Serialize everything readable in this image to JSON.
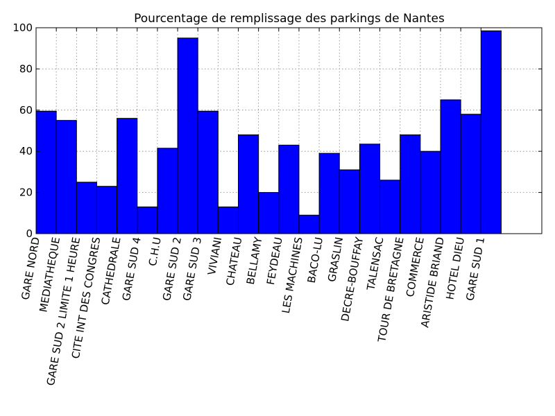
{
  "chart_data": {
    "type": "bar",
    "title": "Pourcentage de remplissage des parkings de Nantes",
    "xlabel": "",
    "ylabel": "",
    "categories": [
      "GARE NORD",
      "MEDIATHEQUE",
      "GARE SUD 2 LIMITE 1 HEURE",
      "CITE INT DES CONGRES",
      "CATHEDRALE",
      "GARE SUD 4",
      "C.H.U",
      "GARE SUD 2",
      "GARE SUD 3",
      "VIVIANI",
      "CHATEAU",
      "BELLAMY",
      "FEYDEAU",
      "LES MACHINES",
      "BACO-LU",
      "GRASLIN",
      "DECRE-BOUFFAY",
      "TALENSAC",
      "TOUR DE BRETAGNE",
      "COMMERCE",
      "ARISTIDE BRIAND",
      "HOTEL DIEU",
      "GARE SUD 1"
    ],
    "values": [
      59.5,
      55,
      25,
      23,
      56,
      13,
      41.5,
      95,
      59.5,
      13,
      48,
      20,
      43,
      9,
      39,
      31,
      43.5,
      26,
      48,
      40,
      65,
      58,
      98.5
    ],
    "ylim": [
      0,
      100
    ],
    "y_ticks": [
      "0",
      "20",
      "40",
      "60",
      "80",
      "100"
    ],
    "grid": true,
    "legend": "none",
    "colors": {
      "bar_fill": "#0000ff",
      "bar_edge": "#000000",
      "grid": "#808080",
      "frame": "#000000"
    }
  }
}
